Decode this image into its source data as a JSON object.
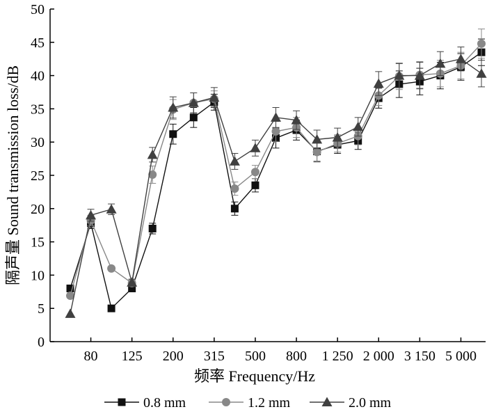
{
  "chart_data": {
    "type": "line",
    "title": "",
    "xlabel": "频率 Frequency/Hz",
    "ylabel": "隔声量 Sound transmission loss/dB",
    "ylim": [
      0,
      50
    ],
    "yticks": [
      "0",
      "5",
      "10",
      "15",
      "20",
      "25",
      "30",
      "35",
      "40",
      "45",
      "50"
    ],
    "x": [
      63,
      80,
      100,
      125,
      160,
      200,
      250,
      315,
      400,
      500,
      630,
      800,
      1000,
      1250,
      1600,
      2000,
      2500,
      3150,
      4000,
      5000,
      6300
    ],
    "xtick_labels": [
      "80",
      "125",
      "200",
      "315",
      "500",
      "800",
      "1 250",
      "2 000",
      "3 150",
      "5 000"
    ],
    "grid": false,
    "legend_position": "bottom",
    "series": [
      {
        "name": "0.8 mm",
        "marker": "square",
        "color": "#111111",
        "values": [
          8.0,
          17.8,
          5.0,
          8.0,
          17.0,
          31.2,
          33.7,
          36.0,
          20.0,
          23.5,
          30.6,
          31.8,
          28.6,
          29.6,
          30.2,
          36.6,
          38.7,
          39.1,
          40.0,
          41.3,
          43.5
        ],
        "errors": [
          0.0,
          0.8,
          0.0,
          0.5,
          0.8,
          1.5,
          1.5,
          1.2,
          1.0,
          1.0,
          1.5,
          1.5,
          1.5,
          1.3,
          1.3,
          1.5,
          2.0,
          2.0,
          2.0,
          2.0,
          2.0
        ]
      },
      {
        "name": "1.2 mm",
        "marker": "circle",
        "color": "#888888",
        "values": [
          6.9,
          18.2,
          11.0,
          8.8,
          25.1,
          34.9,
          35.9,
          36.5,
          23.0,
          25.5,
          31.6,
          32.2,
          28.5,
          29.8,
          30.9,
          37.0,
          39.9,
          40.1,
          40.3,
          41.5,
          44.8
        ],
        "errors": [
          0.0,
          0.8,
          0.0,
          0.5,
          1.3,
          1.5,
          1.5,
          1.2,
          1.0,
          1.0,
          1.5,
          1.5,
          1.5,
          1.3,
          1.3,
          1.5,
          2.0,
          2.0,
          2.0,
          2.0,
          2.2
        ]
      },
      {
        "name": "2.0 mm",
        "marker": "triangle",
        "color": "#404040",
        "values": [
          4.2,
          19.0,
          19.9,
          8.9,
          28.1,
          35.2,
          35.9,
          36.7,
          27.1,
          29.1,
          33.7,
          33.3,
          30.4,
          30.7,
          32.3,
          38.8,
          40.0,
          40.0,
          41.8,
          42.5,
          40.3
        ],
        "errors": [
          0.0,
          0.9,
          0.8,
          0.5,
          1.1,
          1.6,
          1.5,
          1.5,
          1.2,
          1.2,
          1.5,
          1.4,
          1.4,
          1.4,
          1.4,
          1.8,
          1.8,
          2.0,
          1.8,
          1.8,
          2.0
        ]
      }
    ]
  }
}
